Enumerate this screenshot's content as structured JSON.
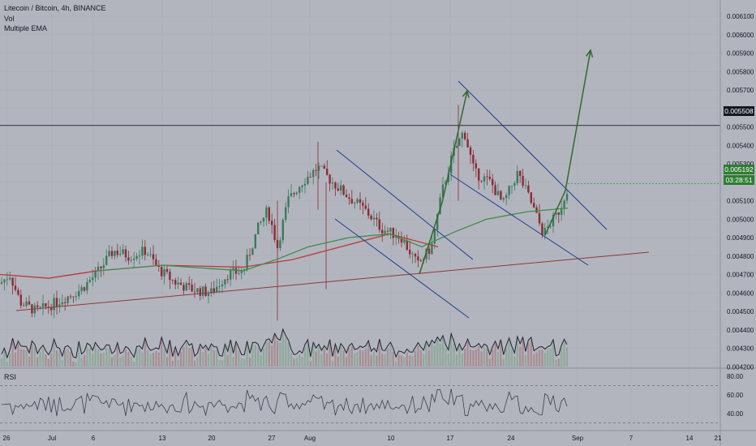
{
  "header": {
    "symbol_line": "Litecoin / Bitcoin, 4h, BINANCE",
    "vol_label": "Vol",
    "ema_label": "Multiple EMA"
  },
  "rsi_label": "RSI",
  "price_tags": {
    "resistance": "0.005508",
    "last_price": "0.005192",
    "countdown": "03:28:51"
  },
  "colors": {
    "background": "#b2b5be",
    "up_candle": "#3b7a5b",
    "down_candle": "#8b2b35",
    "ema_red": "#b83a3a",
    "ema_green": "#3e8d4c",
    "channel_blue": "#1e3d8f",
    "arrow_green": "#2f6a2f",
    "support_brown": "#8b3a3a",
    "tag_dark": "#131722",
    "tag_green": "#2e7d32"
  },
  "chart_data": {
    "type": "candlestick",
    "title": "Litecoin / Bitcoin, 4h, BINANCE",
    "price_axis": {
      "ylim": [
        0.00415,
        0.0061
      ],
      "ticks": [
        "0.004200",
        "0.004300",
        "0.004400",
        "0.004500",
        "0.004600",
        "0.004700",
        "0.004800",
        "0.004900",
        "0.005000",
        "0.005100",
        "0.005200",
        "0.005300",
        "0.005400",
        "0.005500",
        "0.005600",
        "0.005700",
        "0.005800",
        "0.005900",
        "0.006000",
        "0.006100"
      ]
    },
    "x_ticks": [
      "26",
      "Jul",
      "6",
      "13",
      "20",
      "27",
      "Aug",
      "10",
      "17",
      "24",
      "Sep",
      "7",
      "14",
      "21"
    ],
    "rsi": {
      "ylim": [
        30,
        85
      ],
      "ticks": [
        "80.00",
        "60.00",
        "40.00"
      ],
      "levels": [
        70,
        30
      ]
    },
    "annotations": {
      "horizontal_level": 0.005508,
      "last_price": 0.005192
    }
  }
}
